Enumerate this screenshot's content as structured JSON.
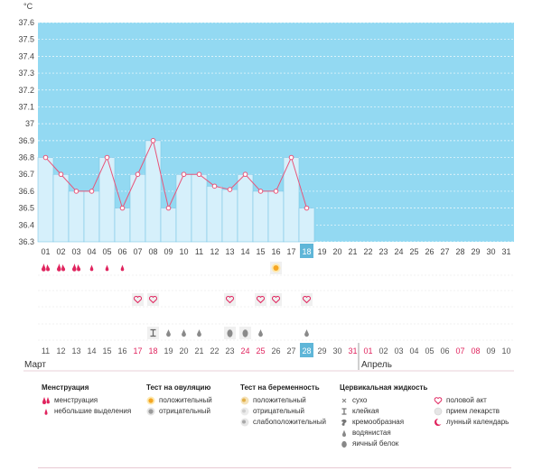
{
  "colors": {
    "accent": "#e0245e",
    "line": "#e8557a",
    "bar_fill": "#d6f0fb",
    "bar_stroke": "#7cc6e6",
    "future_bg": "#93d9f2",
    "today_bg": "#5fb6d8",
    "gray_icon": "#8a8a8a"
  },
  "chart_data": {
    "type": "line",
    "title": "",
    "ylabel": "°C",
    "ylim": [
      36.3,
      37.6
    ],
    "yticks": [
      "37.6",
      "37.5",
      "37.4",
      "37.3",
      "37.2",
      "37.1",
      "37",
      "36.9",
      "36.8",
      "36.7",
      "36.6",
      "36.5",
      "36.4",
      "36.3"
    ],
    "x": [
      "01",
      "02",
      "03",
      "04",
      "05",
      "06",
      "07",
      "08",
      "09",
      "10",
      "11",
      "12",
      "13",
      "14",
      "15",
      "16",
      "17",
      "18",
      "19",
      "20",
      "21",
      "22",
      "23",
      "24",
      "25",
      "26",
      "27",
      "28",
      "29",
      "30",
      "31"
    ],
    "series": [
      {
        "values": [
          36.8,
          36.7,
          36.6,
          36.6,
          36.8,
          36.5,
          36.7,
          36.9,
          36.5,
          36.7,
          36.7,
          36.63,
          36.61,
          36.7,
          36.6,
          36.6,
          36.8,
          36.5,
          null,
          null,
          null,
          null,
          null,
          null,
          null,
          null,
          null,
          null,
          null,
          null,
          null
        ]
      }
    ],
    "today_index": 17
  },
  "rows": {
    "menstruation": [
      "big",
      "big",
      "big",
      "small",
      "small",
      "small",
      "",
      "",
      "",
      "",
      "",
      "",
      "",
      "",
      "",
      "",
      "",
      "",
      "",
      "",
      "",
      "",
      "",
      "",
      "",
      "",
      "",
      "",
      "",
      "",
      ""
    ],
    "ovulation": [
      "",
      "",
      "",
      "",
      "",
      "",
      "",
      "",
      "",
      "",
      "",
      "",
      "",
      "",
      "",
      "pos",
      "",
      "",
      "",
      "",
      "",
      "",
      "",
      "",
      "",
      "",
      "",
      "",
      "",
      "",
      ""
    ],
    "sex": [
      "",
      "",
      "",
      "",
      "",
      "",
      "heart",
      "heart",
      "",
      "",
      "",
      "",
      "heart",
      "",
      "heart",
      "heart",
      "",
      "heart",
      "",
      "",
      "",
      "",
      "",
      "",
      "",
      "",
      "",
      "",
      "",
      "",
      ""
    ],
    "mucus": [
      "",
      "",
      "",
      "",
      "",
      "",
      "",
      "sticky",
      "drop",
      "drop",
      "drop",
      "",
      "egg",
      "egg",
      "drop",
      "",
      "",
      "drop",
      "",
      "",
      "",
      "",
      "",
      "",
      "",
      "",
      "",
      "",
      "",
      "",
      ""
    ]
  },
  "dates": {
    "labels": [
      "11",
      "12",
      "13",
      "14",
      "15",
      "16",
      "17",
      "18",
      "19",
      "20",
      "21",
      "22",
      "23",
      "24",
      "25",
      "26",
      "27",
      "28",
      "29",
      "30",
      "31",
      "01",
      "02",
      "03",
      "04",
      "05",
      "06",
      "07",
      "08",
      "09",
      "10"
    ],
    "red": [
      6,
      7,
      13,
      14,
      20,
      21,
      27,
      28
    ],
    "month_left": "Март",
    "month_right": "Апрель",
    "month_split_index": 21
  },
  "legend": {
    "menstruation": {
      "title": "Менструация",
      "items": [
        "менструация",
        "небольшие выделения"
      ]
    },
    "ovulation": {
      "title": "Тест на овуляцию",
      "items": [
        "положительный",
        "отрицательный"
      ]
    },
    "pregnancy": {
      "title": "Тест на беременность",
      "items": [
        "положительный",
        "отрицательный",
        "слабоположительный"
      ]
    },
    "mucus": {
      "title": "Цервикальная жидкость",
      "items": [
        "сухо",
        "клейкая",
        "кремообразная",
        "водянистая",
        "яичный белок"
      ]
    },
    "other": {
      "items": [
        "половой акт",
        "прием лекарств",
        "лунный календарь"
      ]
    }
  }
}
